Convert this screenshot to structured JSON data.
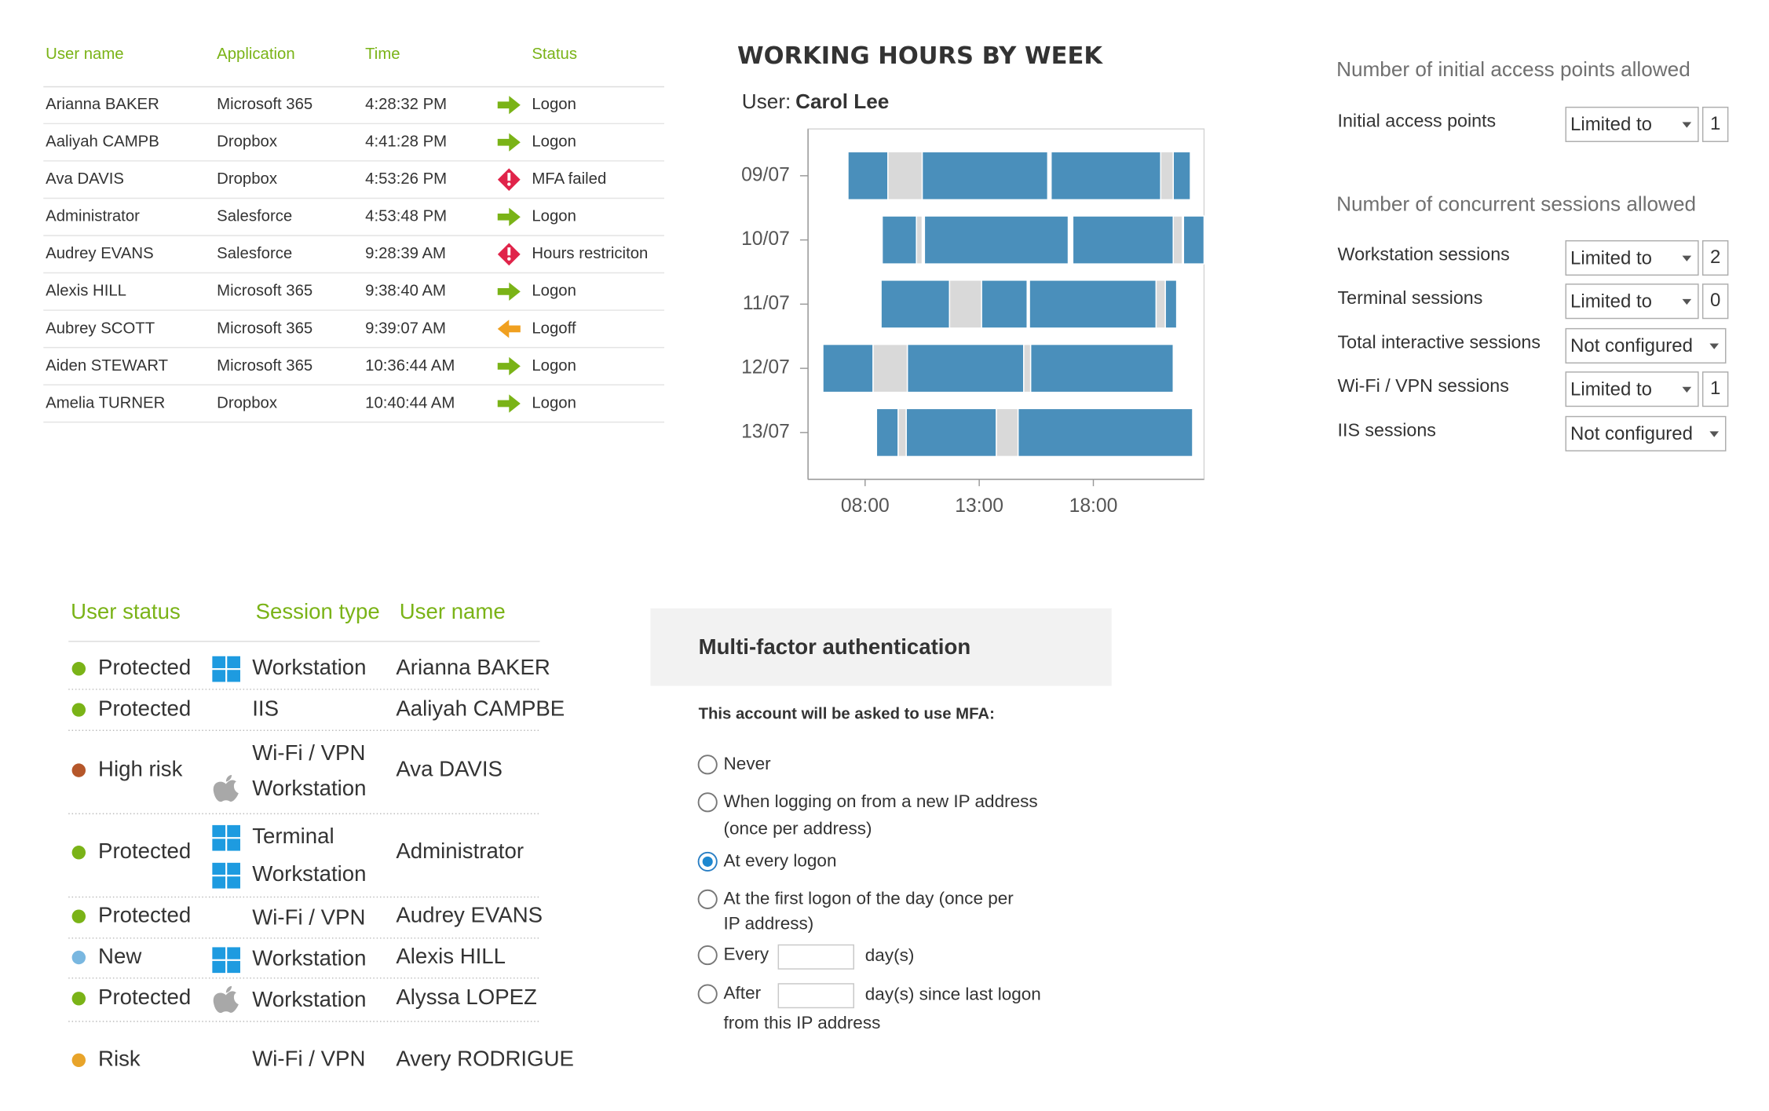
{
  "activity_table": {
    "headers": [
      "User name",
      "Application",
      "Time",
      "Status"
    ],
    "rows": [
      [
        "Arianna BAKER",
        "Microsoft 365",
        "4:28:32 PM",
        "Logon"
      ],
      [
        "Aaliyah CAMPB",
        "Dropbox",
        "4:41:28 PM",
        "Logon"
      ],
      [
        "Ava DAVIS",
        "Dropbox",
        "4:53:26 PM",
        "MFA failed"
      ],
      [
        "Administrator",
        "Salesforce",
        "4:53:48 PM",
        "Logon"
      ],
      [
        "Audrey EVANS",
        "Salesforce",
        "9:28:39 AM",
        "Hours restriciton"
      ],
      [
        "Alexis HILL",
        "Microsoft 365",
        "9:38:40 AM",
        "Logon"
      ],
      [
        "Aubrey SCOTT",
        "Microsoft 365",
        "9:39:07 AM",
        "Logoff"
      ],
      [
        "Aiden STEWART",
        "Microsoft 365",
        "10:36:44 AM",
        "Logon"
      ],
      [
        "Amelia TURNER",
        "Dropbox",
        "10:40:44 AM",
        "Logon"
      ]
    ]
  },
  "working_hours": {
    "title": "WORKING HOURS BY WEEK",
    "user_label": "User:",
    "user": "Carol Lee",
    "work_color": "#4a8fbb",
    "break_color": "#d9d9d9",
    "xlim": [
      5.5,
      22.85
    ],
    "xticks": [
      {
        "value": 8,
        "label": "08:00"
      },
      {
        "value": 13,
        "label": "13:00"
      },
      {
        "value": 18,
        "label": "18:00"
      }
    ],
    "rows": [
      {
        "label": "09/07",
        "work": [
          [
            7.25,
            9.0
          ],
          [
            10.5,
            16.0
          ],
          [
            16.15,
            20.95
          ],
          [
            21.5,
            22.25
          ]
        ],
        "break": [
          [
            9.0,
            10.5
          ],
          [
            20.95,
            21.5
          ]
        ]
      },
      {
        "label": "10/07",
        "work": [
          [
            8.75,
            10.25
          ],
          [
            10.6,
            16.9
          ],
          [
            17.1,
            21.5
          ],
          [
            21.95,
            22.85
          ]
        ],
        "break": [
          [
            10.25,
            10.5
          ],
          [
            21.5,
            21.9
          ]
        ]
      },
      {
        "label": "11/07",
        "work": [
          [
            8.7,
            11.7
          ],
          [
            13.1,
            15.1
          ],
          [
            15.2,
            20.75
          ],
          [
            21.15,
            21.65
          ]
        ],
        "break": [
          [
            11.7,
            13.1
          ],
          [
            20.75,
            21.15
          ]
        ]
      },
      {
        "label": "12/07",
        "work": [
          [
            6.15,
            8.35
          ],
          [
            9.85,
            14.95
          ],
          [
            15.25,
            21.5
          ]
        ],
        "break": [
          [
            8.35,
            9.85
          ],
          [
            14.95,
            15.25
          ]
        ]
      },
      {
        "label": "13/07",
        "work": [
          [
            8.5,
            9.45
          ],
          [
            9.8,
            13.75
          ],
          [
            14.7,
            22.35
          ]
        ],
        "break": [
          [
            9.45,
            9.8
          ],
          [
            13.75,
            14.7
          ]
        ]
      }
    ]
  },
  "access_settings": {
    "initial_title": "Number of initial access points allowed",
    "initial_rows": [
      {
        "label": "Initial access points",
        "setting": "Limited to",
        "limit": "1"
      }
    ],
    "concurrent_title": "Number of concurrent sessions allowed",
    "concurrent_rows": [
      {
        "label": "Workstation sessions",
        "setting": "Limited to",
        "limit": "2"
      },
      {
        "label": "Terminal sessions",
        "setting": "Limited to",
        "limit": "0"
      },
      {
        "label": "Total interactive sessions",
        "setting": "Not configured"
      },
      {
        "label": "Wi-Fi / VPN sessions",
        "setting": "Limited to",
        "limit": "1"
      },
      {
        "label": "IIS sessions",
        "setting": "Not configured"
      }
    ]
  },
  "user_status_table": {
    "headers": [
      "User status",
      "Session type",
      "User name"
    ],
    "rows": [
      {
        "status": "Protected",
        "dot_color": "#7ab317",
        "sessions": [
          "Workstation"
        ],
        "user": "Arianna BAKER"
      },
      {
        "status": "Protected",
        "dot_color": "#7ab317",
        "sessions": [
          "IIS"
        ],
        "user": "Aaliyah CAMPBE"
      },
      {
        "status": "High risk",
        "dot_color": "#b5572a",
        "sessions": [
          "Wi-Fi / VPN",
          "Workstation"
        ],
        "user": "Ava DAVIS"
      },
      {
        "status": "Protected",
        "dot_color": "#7ab317",
        "sessions": [
          "Terminal",
          "Workstation"
        ],
        "user": "Administrator"
      },
      {
        "status": "Protected",
        "dot_color": "#7ab317",
        "sessions": [
          "Wi-Fi / VPN"
        ],
        "user": "Audrey EVANS"
      },
      {
        "status": "New",
        "dot_color": "#79b7e0",
        "sessions": [
          "Workstation"
        ],
        "user": "Alexis HILL"
      },
      {
        "status": "Protected",
        "dot_color": "#7ab317",
        "sessions": [
          "Workstation"
        ],
        "user": "Alyssa LOPEZ"
      },
      {
        "status": "Risk",
        "dot_color": "#e8a42a",
        "sessions": [
          "Wi-Fi / VPN"
        ],
        "user": "Avery RODRIGUE"
      }
    ]
  },
  "mfa": {
    "title": "Multi-factor authentication",
    "prompt": "This account will be asked to use MFA:",
    "selected": 2,
    "options": [
      [
        "Never"
      ],
      [
        "When logging on from a new IP address",
        "(once per address)"
      ],
      [
        "At every logon"
      ],
      [
        "At the first logon of the day (once per",
        "IP address)"
      ],
      [
        "Every",
        "day(s)"
      ],
      [
        "After",
        "day(s) since last logon",
        "from this IP address"
      ]
    ]
  }
}
